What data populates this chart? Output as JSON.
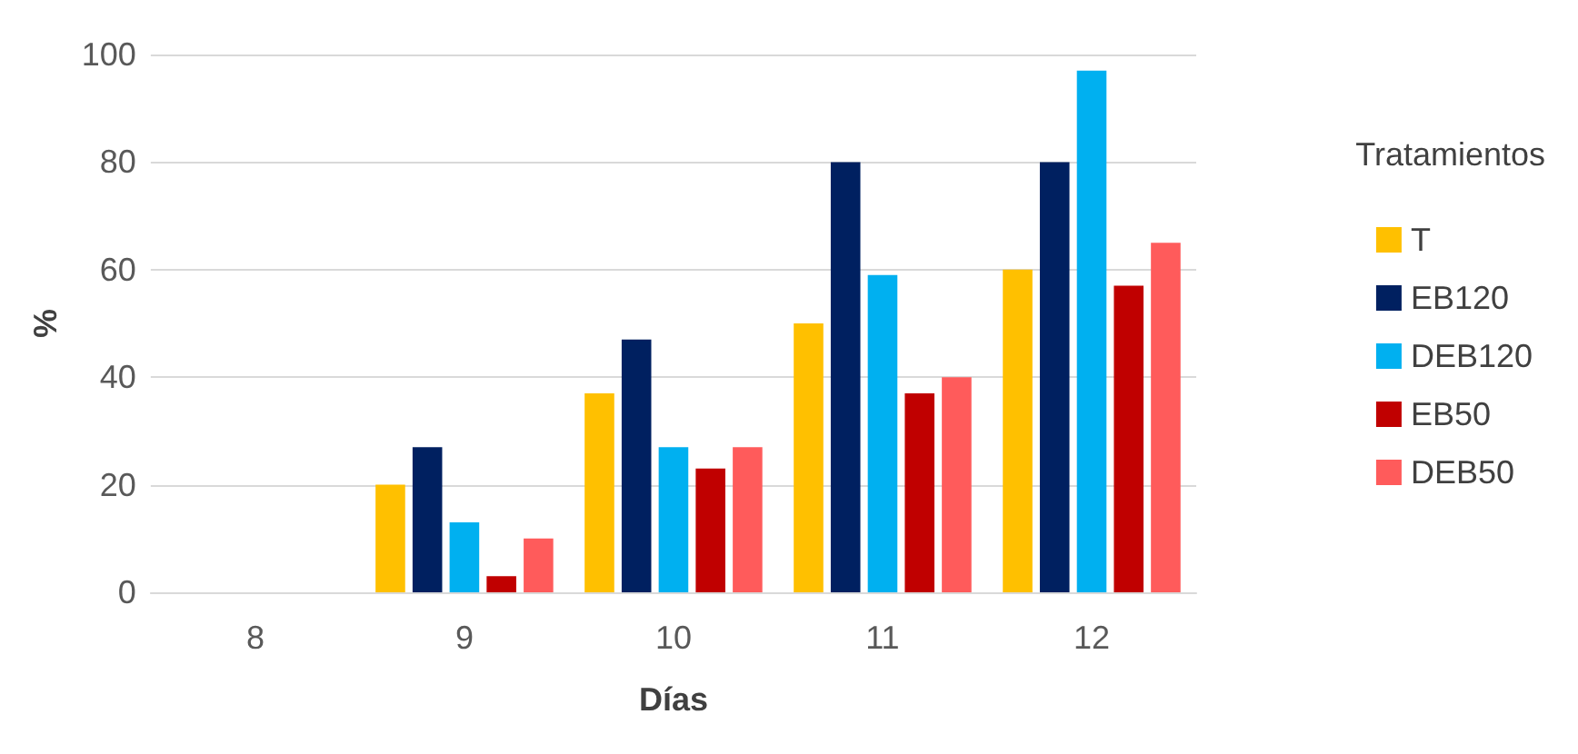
{
  "chart_data": {
    "type": "bar",
    "xlabel": "Días",
    "ylabel": "%",
    "legend_title": "Tratamientos",
    "categories": [
      "8",
      "9",
      "10",
      "11",
      "12"
    ],
    "series": [
      {
        "name": "T",
        "color": "#ffc000",
        "values": [
          0,
          20,
          37,
          50,
          60
        ]
      },
      {
        "name": "EB120",
        "color": "#002060",
        "values": [
          0,
          27,
          47,
          80,
          80
        ]
      },
      {
        "name": "DEB120",
        "color": "#00b0f0",
        "values": [
          0,
          13,
          27,
          59,
          97
        ]
      },
      {
        "name": "EB50",
        "color": "#c00000",
        "values": [
          0,
          3,
          23,
          37,
          57
        ]
      },
      {
        "name": "DEB50",
        "color": "#ff5b5b",
        "values": [
          0,
          10,
          27,
          40,
          65
        ]
      }
    ],
    "ylim": [
      0,
      100
    ],
    "yticks": [
      0,
      20,
      40,
      60,
      80,
      100
    ],
    "grid": "y",
    "legend": "right"
  }
}
